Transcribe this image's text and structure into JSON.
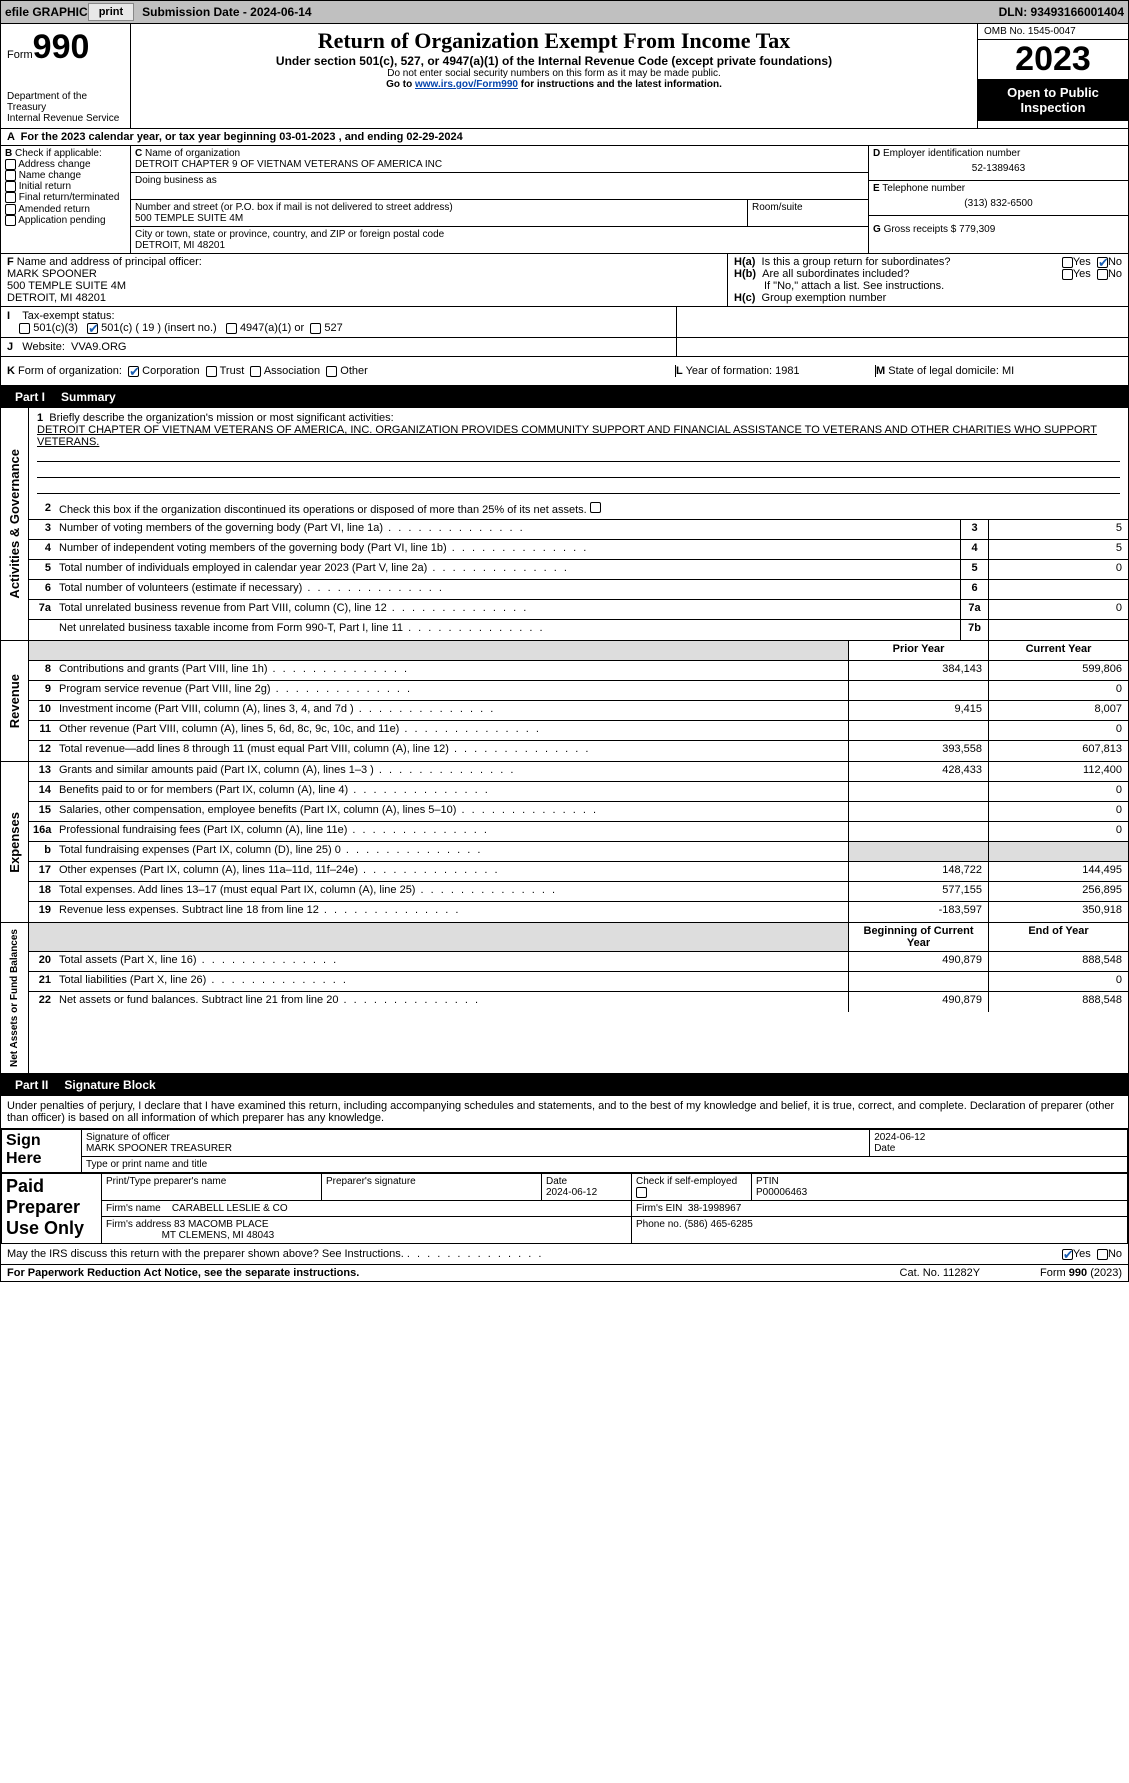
{
  "topbar": {
    "efile": "efile GRAPHIC",
    "print_btn": "print",
    "sub_label": "Submission Date - 2024-06-14",
    "dln": "DLN: 93493166001404"
  },
  "header": {
    "form_prefix": "Form",
    "form_no": "990",
    "dept": "Department of the Treasury\nInternal Revenue Service",
    "title": "Return of Organization Exempt From Income Tax",
    "sub1": "Under section 501(c), 527, or 4947(a)(1) of the Internal Revenue Code (except private foundations)",
    "sub2": "Do not enter social security numbers on this form as it may be made public.",
    "sub3_pre": "Go to ",
    "sub3_link": "www.irs.gov/Form990",
    "sub3_post": " for instructions and the latest information.",
    "omb": "OMB No. 1545-0047",
    "year": "2023",
    "open": "Open to Public Inspection"
  },
  "a": {
    "text": "For the 2023 calendar year, or tax year beginning 03-01-2023   , and ending 02-29-2024"
  },
  "b": {
    "label": "Check if applicable:",
    "items": [
      "Address change",
      "Name change",
      "Initial return",
      "Final return/terminated",
      "Amended return",
      "Application pending"
    ]
  },
  "c": {
    "name_label": "Name of organization",
    "name": "DETROIT CHAPTER 9 OF VIETNAM VETERANS OF AMERICA INC",
    "dba_label": "Doing business as",
    "dba": "",
    "street_label": "Number and street (or P.O. box if mail is not delivered to street address)",
    "street": "500 TEMPLE SUITE 4M",
    "room_label": "Room/suite",
    "city_label": "City or town, state or province, country, and ZIP or foreign postal code",
    "city": "DETROIT, MI  48201"
  },
  "d": {
    "label": "Employer identification number",
    "val": "52-1389463"
  },
  "e": {
    "label": "Telephone number",
    "val": "(313) 832-6500"
  },
  "g": {
    "label": "Gross receipts $",
    "val": "779,309"
  },
  "f": {
    "label": "Name and address of principal officer:",
    "name": "MARK SPOONER",
    "addr1": "500 TEMPLE SUITE 4M",
    "addr2": "DETROIT, MI  48201"
  },
  "h": {
    "a": "Is this a group return for subordinates?",
    "b": "Are all subordinates included?",
    "b_note": "If \"No,\" attach a list. See instructions.",
    "c": "Group exemption number",
    "yes": "Yes",
    "no": "No"
  },
  "i": {
    "label": "Tax-exempt status:",
    "c19": "501(c) ( 19 ) (insert no.)",
    "c3": "501(c)(3)",
    "a4947": "4947(a)(1) or",
    "s527": "527"
  },
  "j": {
    "label": "Website:",
    "val": "VVA9.ORG"
  },
  "k": {
    "label": "Form of organization:",
    "corp": "Corporation",
    "trust": "Trust",
    "assoc": "Association",
    "other": "Other"
  },
  "l": {
    "label": "Year of formation:",
    "val": "1981"
  },
  "m": {
    "label": "State of legal domicile:",
    "val": "MI"
  },
  "part1": {
    "label": "Part I",
    "title": "Summary"
  },
  "mission": {
    "q": "Briefly describe the organization's mission or most significant activities:",
    "text": "DETROIT CHAPTER OF VIETNAM VETERANS OF AMERICA, INC. ORGANIZATION PROVIDES COMMUNITY SUPPORT AND FINANCIAL ASSISTANCE TO VETERANS AND OTHER CHARITIES WHO SUPPORT VETERANS."
  },
  "gov": {
    "l2": "Check this box     if the organization discontinued its operations or disposed of more than 25% of its net assets.",
    "l3": {
      "t": "Number of voting members of the governing body (Part VI, line 1a)",
      "n": "3",
      "v": "5"
    },
    "l4": {
      "t": "Number of independent voting members of the governing body (Part VI, line 1b)",
      "n": "4",
      "v": "5"
    },
    "l5": {
      "t": "Total number of individuals employed in calendar year 2023 (Part V, line 2a)",
      "n": "5",
      "v": "0"
    },
    "l6": {
      "t": "Total number of volunteers (estimate if necessary)",
      "n": "6",
      "v": ""
    },
    "l7a": {
      "t": "Total unrelated business revenue from Part VIII, column (C), line 12",
      "n": "7a",
      "v": "0"
    },
    "l7b": {
      "t": "Net unrelated business taxable income from Form 990-T, Part I, line 11",
      "n": "7b",
      "v": ""
    }
  },
  "rev_hdr": {
    "prior": "Prior Year",
    "current": "Current Year"
  },
  "rev": [
    {
      "n": "8",
      "t": "Contributions and grants (Part VIII, line 1h)",
      "p": "384,143",
      "c": "599,806"
    },
    {
      "n": "9",
      "t": "Program service revenue (Part VIII, line 2g)",
      "p": "",
      "c": "0"
    },
    {
      "n": "10",
      "t": "Investment income (Part VIII, column (A), lines 3, 4, and 7d )",
      "p": "9,415",
      "c": "8,007"
    },
    {
      "n": "11",
      "t": "Other revenue (Part VIII, column (A), lines 5, 6d, 8c, 9c, 10c, and 11e)",
      "p": "",
      "c": "0"
    },
    {
      "n": "12",
      "t": "Total revenue—add lines 8 through 11 (must equal Part VIII, column (A), line 12)",
      "p": "393,558",
      "c": "607,813"
    }
  ],
  "exp": [
    {
      "n": "13",
      "t": "Grants and similar amounts paid (Part IX, column (A), lines 1–3 )",
      "p": "428,433",
      "c": "112,400"
    },
    {
      "n": "14",
      "t": "Benefits paid to or for members (Part IX, column (A), line 4)",
      "p": "",
      "c": "0"
    },
    {
      "n": "15",
      "t": "Salaries, other compensation, employee benefits (Part IX, column (A), lines 5–10)",
      "p": "",
      "c": "0"
    },
    {
      "n": "16a",
      "t": "Professional fundraising fees (Part IX, column (A), line 11e)",
      "p": "",
      "c": "0"
    },
    {
      "n": "b",
      "t": "Total fundraising expenses (Part IX, column (D), line 25) 0",
      "p": "grey",
      "c": "grey"
    },
    {
      "n": "17",
      "t": "Other expenses (Part IX, column (A), lines 11a–11d, 11f–24e)",
      "p": "148,722",
      "c": "144,495"
    },
    {
      "n": "18",
      "t": "Total expenses. Add lines 13–17 (must equal Part IX, column (A), line 25)",
      "p": "577,155",
      "c": "256,895"
    },
    {
      "n": "19",
      "t": "Revenue less expenses. Subtract line 18 from line 12",
      "p": "-183,597",
      "c": "350,918"
    }
  ],
  "na_hdr": {
    "prior": "Beginning of Current Year",
    "current": "End of Year"
  },
  "na": [
    {
      "n": "20",
      "t": "Total assets (Part X, line 16)",
      "p": "490,879",
      "c": "888,548"
    },
    {
      "n": "21",
      "t": "Total liabilities (Part X, line 26)",
      "p": "",
      "c": "0"
    },
    {
      "n": "22",
      "t": "Net assets or fund balances. Subtract line 21 from line 20",
      "p": "490,879",
      "c": "888,548"
    }
  ],
  "part2": {
    "label": "Part II",
    "title": "Signature Block"
  },
  "sig": {
    "decl": "Under penalties of perjury, I declare that I have examined this return, including accompanying schedules and statements, and to the best of my knowledge and belief, it is true, correct, and complete. Declaration of preparer (other than officer) is based on all information of which preparer has any knowledge.",
    "sign_here": "Sign Here",
    "officer_sig": "Signature of officer",
    "officer_name": "MARK SPOONER  TREASURER",
    "officer_title": "Type or print name and title",
    "date1": "2024-06-12",
    "date_lbl": "Date",
    "paid": "Paid Preparer Use Only",
    "prep_name_lbl": "Print/Type preparer's name",
    "prep_sig_lbl": "Preparer's signature",
    "date2": "2024-06-12",
    "check_lbl": "Check        if self-employed",
    "ptin_lbl": "PTIN",
    "ptin": "P00006463",
    "firm_name_lbl": "Firm's name",
    "firm_name": "CARABELL LESLIE & CO",
    "firm_ein_lbl": "Firm's EIN",
    "firm_ein": "38-1998967",
    "firm_addr_lbl": "Firm's address",
    "firm_addr1": "83 MACOMB PLACE",
    "firm_addr2": "MT CLEMENS, MI  48043",
    "phone_lbl": "Phone no.",
    "phone": "(586) 465-6285",
    "discuss": "May the IRS discuss this return with the preparer shown above? See Instructions.",
    "yes": "Yes",
    "no": "No"
  },
  "footer": {
    "pra": "For Paperwork Reduction Act Notice, see the separate instructions.",
    "cat": "Cat. No. 11282Y",
    "form": "Form 990 (2023)"
  },
  "vlabels": {
    "gov": "Activities & Governance",
    "rev": "Revenue",
    "exp": "Expenses",
    "na": "Net Assets or Fund Balances"
  }
}
